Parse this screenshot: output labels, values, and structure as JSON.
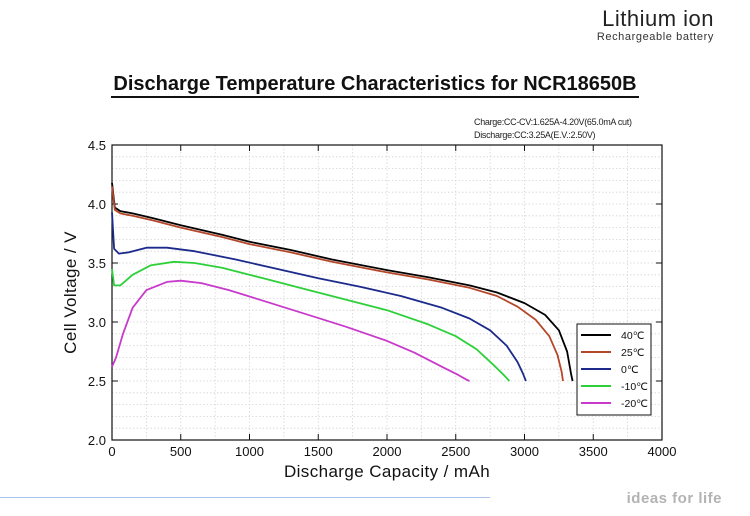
{
  "brand": {
    "title": "Lithium ion",
    "subtitle": "Rechargeable battery"
  },
  "footer": {
    "tagline": "ideas for life"
  },
  "chart_data": {
    "type": "line",
    "title": "Discharge Temperature Characteristics for NCR18650B",
    "conditions": [
      "Charge:CC-CV:1.625A-4.20V(65.0mA cut)",
      "Discharge:CC:3.25A(E.V.:2.50V)"
    ],
    "xlabel": "Discharge Capacity  /  mAh",
    "ylabel": "Cell Voltage  /  V",
    "xlim": [
      0,
      4000
    ],
    "ylim": [
      2.0,
      4.5
    ],
    "xticks": [
      0,
      500,
      1000,
      1500,
      2000,
      2500,
      3000,
      3500,
      4000
    ],
    "yticks": [
      2.0,
      2.5,
      3.0,
      3.5,
      4.0,
      4.5
    ],
    "ytick_labels": [
      "2.0",
      "2.5",
      "3.0",
      "3.5",
      "4.0",
      "4.5"
    ],
    "grid": true,
    "legend_position": "right",
    "series": [
      {
        "name": "40℃",
        "color": "#000000",
        "points": [
          [
            0,
            4.18
          ],
          [
            20,
            3.97
          ],
          [
            60,
            3.94
          ],
          [
            150,
            3.92
          ],
          [
            300,
            3.88
          ],
          [
            500,
            3.82
          ],
          [
            800,
            3.74
          ],
          [
            1000,
            3.68
          ],
          [
            1300,
            3.61
          ],
          [
            1600,
            3.53
          ],
          [
            2000,
            3.44
          ],
          [
            2300,
            3.38
          ],
          [
            2600,
            3.31
          ],
          [
            2800,
            3.25
          ],
          [
            3000,
            3.16
          ],
          [
            3150,
            3.06
          ],
          [
            3250,
            2.93
          ],
          [
            3310,
            2.75
          ],
          [
            3340,
            2.55
          ],
          [
            3350,
            2.5
          ]
        ]
      },
      {
        "name": "25℃",
        "color": "#b5472a",
        "points": [
          [
            0,
            4.15
          ],
          [
            20,
            3.95
          ],
          [
            60,
            3.92
          ],
          [
            150,
            3.9
          ],
          [
            300,
            3.86
          ],
          [
            500,
            3.8
          ],
          [
            800,
            3.72
          ],
          [
            1000,
            3.66
          ],
          [
            1300,
            3.59
          ],
          [
            1600,
            3.51
          ],
          [
            2000,
            3.42
          ],
          [
            2300,
            3.36
          ],
          [
            2600,
            3.29
          ],
          [
            2800,
            3.22
          ],
          [
            2950,
            3.13
          ],
          [
            3080,
            3.02
          ],
          [
            3180,
            2.88
          ],
          [
            3240,
            2.72
          ],
          [
            3270,
            2.58
          ],
          [
            3280,
            2.5
          ]
        ]
      },
      {
        "name": "0℃",
        "color": "#1c2a8c",
        "points": [
          [
            0,
            3.93
          ],
          [
            15,
            3.62
          ],
          [
            50,
            3.58
          ],
          [
            120,
            3.59
          ],
          [
            250,
            3.63
          ],
          [
            400,
            3.63
          ],
          [
            600,
            3.6
          ],
          [
            900,
            3.53
          ],
          [
            1200,
            3.45
          ],
          [
            1500,
            3.37
          ],
          [
            1800,
            3.3
          ],
          [
            2100,
            3.22
          ],
          [
            2400,
            3.12
          ],
          [
            2600,
            3.03
          ],
          [
            2750,
            2.93
          ],
          [
            2870,
            2.8
          ],
          [
            2950,
            2.66
          ],
          [
            2990,
            2.56
          ],
          [
            3010,
            2.5
          ]
        ]
      },
      {
        "name": "-10℃",
        "color": "#2ed03a",
        "points": [
          [
            0,
            3.45
          ],
          [
            15,
            3.31
          ],
          [
            60,
            3.31
          ],
          [
            150,
            3.4
          ],
          [
            280,
            3.48
          ],
          [
            450,
            3.51
          ],
          [
            600,
            3.5
          ],
          [
            800,
            3.46
          ],
          [
            1100,
            3.37
          ],
          [
            1400,
            3.28
          ],
          [
            1700,
            3.19
          ],
          [
            2000,
            3.1
          ],
          [
            2300,
            2.98
          ],
          [
            2500,
            2.88
          ],
          [
            2650,
            2.77
          ],
          [
            2780,
            2.63
          ],
          [
            2850,
            2.55
          ],
          [
            2890,
            2.5
          ]
        ]
      },
      {
        "name": "-20℃",
        "color": "#c83acb",
        "points": [
          [
            0,
            2.62
          ],
          [
            30,
            2.7
          ],
          [
            80,
            2.9
          ],
          [
            150,
            3.12
          ],
          [
            250,
            3.27
          ],
          [
            400,
            3.34
          ],
          [
            500,
            3.35
          ],
          [
            650,
            3.33
          ],
          [
            850,
            3.27
          ],
          [
            1100,
            3.18
          ],
          [
            1400,
            3.07
          ],
          [
            1700,
            2.96
          ],
          [
            2000,
            2.84
          ],
          [
            2200,
            2.74
          ],
          [
            2400,
            2.62
          ],
          [
            2520,
            2.55
          ],
          [
            2580,
            2.51
          ],
          [
            2600,
            2.5
          ]
        ]
      }
    ]
  }
}
